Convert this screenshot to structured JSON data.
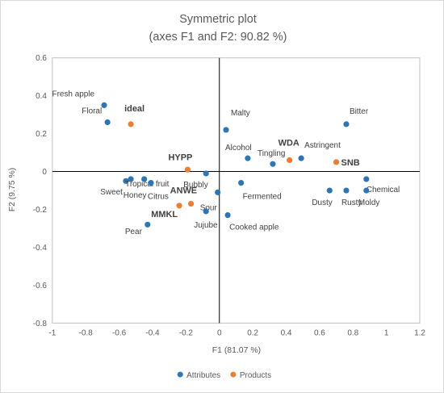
{
  "chart_data": {
    "type": "scatter",
    "title": "Symmetric plot",
    "subtitle": "(axes F1 and F2: 90.82 %)",
    "xlabel": "F1 (81.07 %)",
    "ylabel": "F2 (9.75 %)",
    "xlim": [
      -1,
      1.2
    ],
    "ylim": [
      -0.8,
      0.6
    ],
    "xticks": [
      "-1",
      "-0.8",
      "-0.6",
      "-0.4",
      "-0.2",
      "0",
      "0.2",
      "0.4",
      "0.6",
      "0.8",
      "1",
      "1.2"
    ],
    "yticks": [
      "0.6",
      "0.4",
      "0.2",
      "0",
      "-0.2",
      "-0.4",
      "-0.6",
      "-0.8"
    ],
    "grid": false,
    "legend_position": "bottom",
    "series": [
      {
        "name": "Attributes",
        "color": "#2e75b6",
        "points": [
          {
            "label": "Fresh apple",
            "x": -0.69,
            "y": 0.35
          },
          {
            "label": "Floral",
            "x": -0.67,
            "y": 0.26
          },
          {
            "label": "Malty",
            "x": 0.04,
            "y": 0.22
          },
          {
            "label": "Bitter",
            "x": 0.76,
            "y": 0.25
          },
          {
            "label": "Alcohol",
            "x": 0.17,
            "y": 0.07
          },
          {
            "label": "Tingling",
            "x": 0.32,
            "y": 0.04
          },
          {
            "label": "Astringent",
            "x": 0.49,
            "y": 0.07
          },
          {
            "label": "Sweet",
            "x": -0.56,
            "y": -0.05
          },
          {
            "label": "Tropical fruit",
            "x": -0.53,
            "y": -0.04
          },
          {
            "label": "Honey",
            "x": -0.45,
            "y": -0.04
          },
          {
            "label": "Citrus",
            "x": -0.41,
            "y": -0.06
          },
          {
            "label": "Bubbly",
            "x": -0.08,
            "y": -0.01
          },
          {
            "label": "Fermented",
            "x": 0.13,
            "y": -0.06
          },
          {
            "label": "Sour",
            "x": -0.01,
            "y": -0.11
          },
          {
            "label": "Jujube",
            "x": -0.08,
            "y": -0.21
          },
          {
            "label": "Cooked apple",
            "x": 0.05,
            "y": -0.23
          },
          {
            "label": "Pear",
            "x": -0.43,
            "y": -0.28
          },
          {
            "label": "Chemical",
            "x": 0.88,
            "y": -0.04
          },
          {
            "label": "Dusty",
            "x": 0.66,
            "y": -0.1
          },
          {
            "label": "Rusty",
            "x": 0.76,
            "y": -0.1
          },
          {
            "label": "Moldy",
            "x": 0.88,
            "y": -0.1
          }
        ]
      },
      {
        "name": "Products",
        "color": "#ed7d31",
        "points": [
          {
            "label": "ideal",
            "x": -0.53,
            "y": 0.25
          },
          {
            "label": "WDA",
            "x": 0.42,
            "y": 0.06
          },
          {
            "label": "SNB",
            "x": 0.7,
            "y": 0.05
          },
          {
            "label": "HYPP",
            "x": -0.19,
            "y": 0.01
          },
          {
            "label": "ANWE",
            "x": -0.17,
            "y": -0.17
          },
          {
            "label": "MMKL",
            "x": -0.24,
            "y": -0.18
          }
        ]
      }
    ]
  }
}
